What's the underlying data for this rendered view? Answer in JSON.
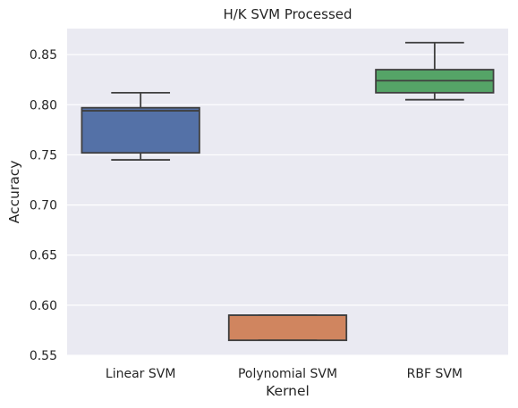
{
  "chart_data": {
    "type": "box",
    "title": "H/K SVM Processed",
    "xlabel": "Kernel",
    "ylabel": "Accuracy",
    "ylim": [
      0.55,
      0.876
    ],
    "yticks": [
      "0.55",
      "0.60",
      "0.65",
      "0.70",
      "0.75",
      "0.80",
      "0.85"
    ],
    "grid": true,
    "categories": [
      "Linear SVM",
      "Polynomial SVM",
      "RBF SVM"
    ],
    "boxes": [
      {
        "name": "Linear SVM",
        "whisker_low": 0.745,
        "q1": 0.752,
        "median": 0.794,
        "q3": 0.797,
        "whisker_high": 0.812,
        "color": "#5471a7"
      },
      {
        "name": "Polynomial SVM",
        "whisker_low": 0.565,
        "q1": 0.565,
        "median": 0.59,
        "q3": 0.59,
        "whisker_high": 0.59,
        "color": "#d0855f"
      },
      {
        "name": "RBF SVM",
        "whisker_low": 0.805,
        "q1": 0.812,
        "median": 0.824,
        "q3": 0.835,
        "whisker_high": 0.862,
        "color": "#55a467"
      }
    ],
    "colors": {
      "plot_bg": "#eaeaf2",
      "grid": "#ffffff",
      "line": "#3f3f3f",
      "text": "#262626"
    }
  }
}
